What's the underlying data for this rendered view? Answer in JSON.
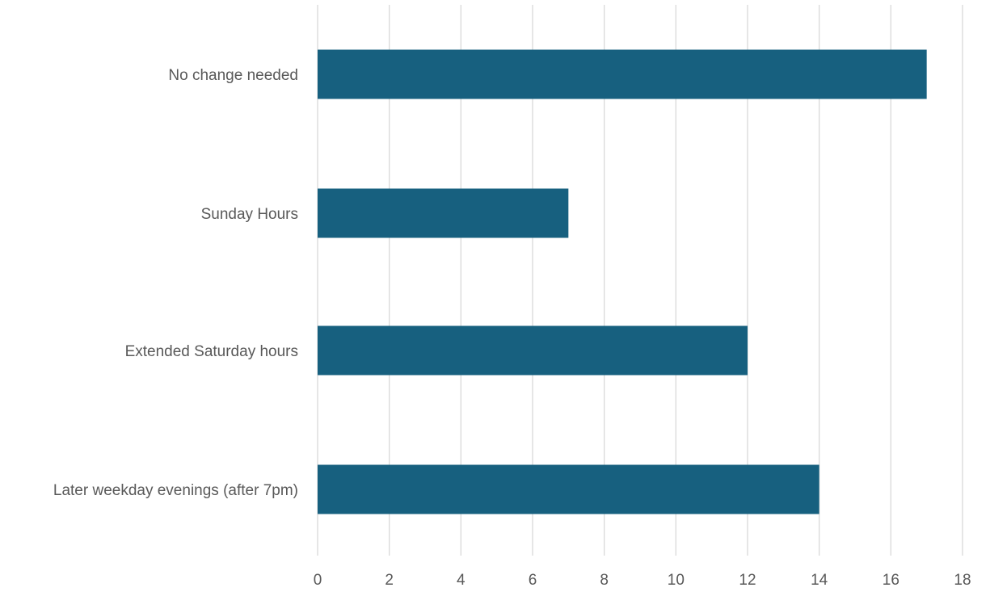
{
  "chart_data": {
    "type": "bar",
    "orientation": "horizontal",
    "categories": [
      "No change needed",
      "Sunday Hours",
      "Extended Saturday hours",
      "Later weekday evenings (after 7pm)"
    ],
    "values": [
      17,
      7,
      12,
      14
    ],
    "xlim": [
      0,
      18
    ],
    "xticks": [
      "0",
      "2",
      "4",
      "6",
      "8",
      "10",
      "12",
      "14",
      "16",
      "18"
    ],
    "title": "",
    "xlabel": "",
    "ylabel": "",
    "grid": "vertical gridlines",
    "legend": "none",
    "bar_color": "#17607f",
    "grid_color": "#d9d9d9",
    "label_color": "#595959"
  }
}
